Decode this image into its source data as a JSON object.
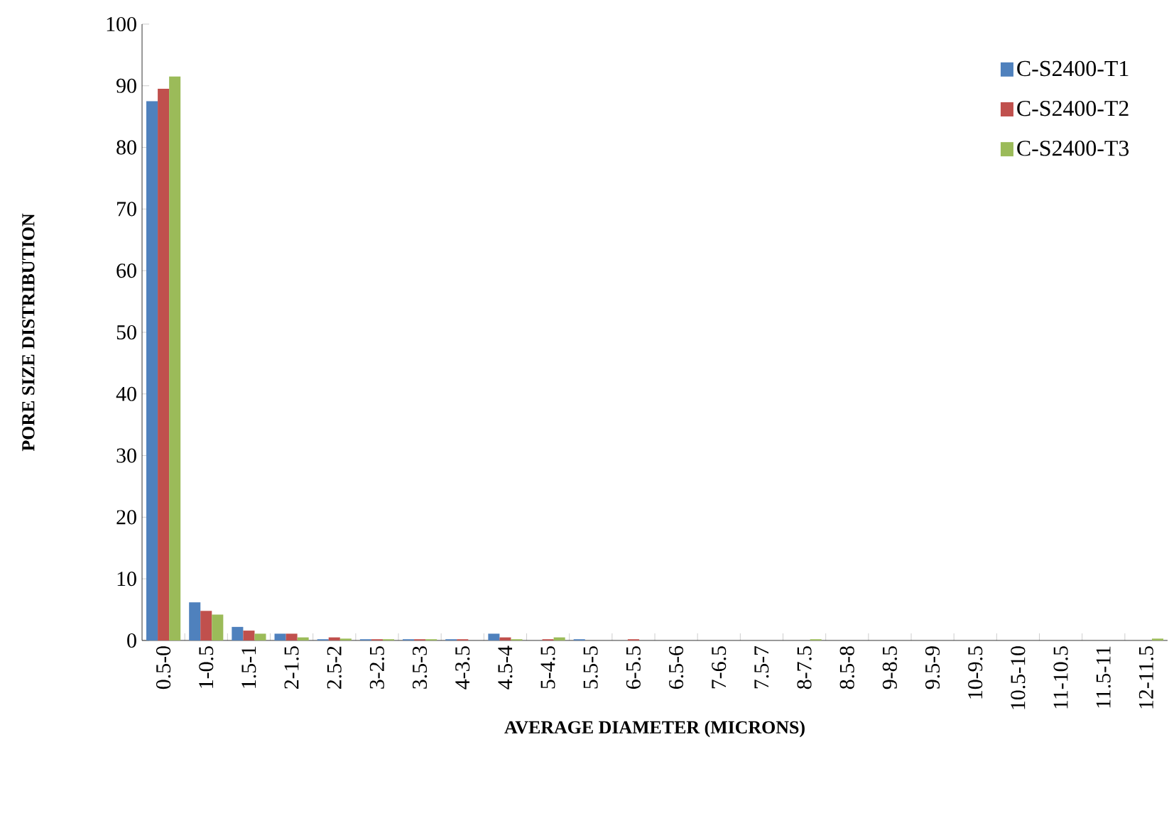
{
  "chart_data": {
    "type": "bar",
    "xlabel": "AVERAGE DIAMETER (MICRONS)",
    "ylabel": "PORE SIZE DISTRIBUTION",
    "categories": [
      "0.5-0",
      "1-0.5",
      "1.5-1",
      "2-1.5",
      "2.5-2",
      "3-2.5",
      "3.5-3",
      "4-3.5",
      "4.5-4",
      "5-4.5",
      "5.5-5",
      "6-5.5",
      "6.5-6",
      "7-6.5",
      "7.5-7",
      "8-7.5",
      "8.5-8",
      "9-8.5",
      "9.5-9",
      "10-9.5",
      "10.5-10",
      "11-10.5",
      "11.5-11",
      "12-11.5"
    ],
    "series": [
      {
        "name": "C-S2400-T1",
        "color": "#4f81bd",
        "values": [
          87.5,
          6.2,
          2.2,
          1.1,
          0.2,
          0.2,
          0.2,
          0.2,
          1.1,
          0,
          0.2,
          0,
          0,
          0,
          0,
          0,
          0,
          0,
          0,
          0,
          0,
          0,
          0,
          0
        ]
      },
      {
        "name": "C-S2400-T2",
        "color": "#c0504d",
        "values": [
          89.5,
          4.8,
          1.6,
          1.1,
          0.5,
          0.2,
          0.2,
          0.2,
          0.5,
          0.2,
          0,
          0.2,
          0,
          0,
          0,
          0,
          0,
          0,
          0,
          0,
          0,
          0,
          0,
          0
        ]
      },
      {
        "name": "C-S2400-T3",
        "color": "#9bbb59",
        "values": [
          91.5,
          4.2,
          1.1,
          0.5,
          0.3,
          0.2,
          0.2,
          0,
          0.2,
          0.5,
          0,
          0,
          0,
          0,
          0,
          0.2,
          0,
          0,
          0,
          0,
          0,
          0,
          0,
          0.3
        ]
      }
    ],
    "ylim": [
      0,
      100
    ],
    "yticks": [
      0,
      10,
      20,
      30,
      40,
      50,
      60,
      70,
      80,
      90,
      100
    ],
    "grid": false,
    "legend": "top right"
  }
}
